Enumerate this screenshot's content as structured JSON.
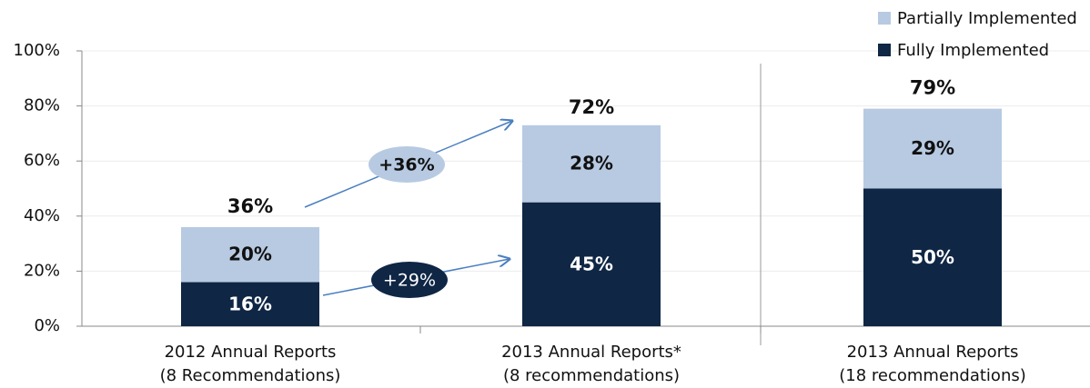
{
  "chart_data": {
    "type": "stacked_bar",
    "categories": [
      [
        "2012 Annual Reports",
        "(8 Recommendations)"
      ],
      [
        "2013 Annual Reports*",
        "(8 recommendations)"
      ],
      [
        "2013 Annual Reports",
        "(18 recommendations)"
      ]
    ],
    "series": [
      {
        "name": "Fully Implemented",
        "color": "#0f2645",
        "values": [
          16,
          45,
          50
        ],
        "value_labels": [
          "16%",
          "45%",
          "50%"
        ]
      },
      {
        "name": "Partially Implemented",
        "color": "#b7cae2",
        "values": [
          20,
          28,
          29
        ],
        "value_labels": [
          "20%",
          "28%",
          "29%"
        ]
      }
    ],
    "totals": {
      "values": [
        36,
        72,
        79
      ],
      "value_labels": [
        "36%",
        "72%",
        "79%"
      ]
    },
    "annotations": [
      {
        "label": "+36%"
      },
      {
        "label": "+29%"
      }
    ],
    "ylim": [
      0,
      100
    ],
    "yticks": [
      {
        "value": 0,
        "label": "0%"
      },
      {
        "value": 20,
        "label": "20%"
      },
      {
        "value": 40,
        "label": "40%"
      },
      {
        "value": 60,
        "label": "60%"
      },
      {
        "value": 80,
        "label": "80%"
      },
      {
        "value": 100,
        "label": "100%"
      }
    ],
    "grid": true
  }
}
